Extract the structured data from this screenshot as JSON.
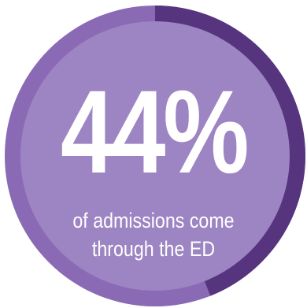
{
  "stat": {
    "value_text": "44%",
    "value": 44,
    "caption_line1": "of admissions come",
    "caption_line2": "through the ED"
  },
  "colors": {
    "ring_track": "#8a6ab4",
    "ring_progress": "#56357e",
    "inner_disc": "#9d84c3",
    "text": "#ffffff"
  }
}
